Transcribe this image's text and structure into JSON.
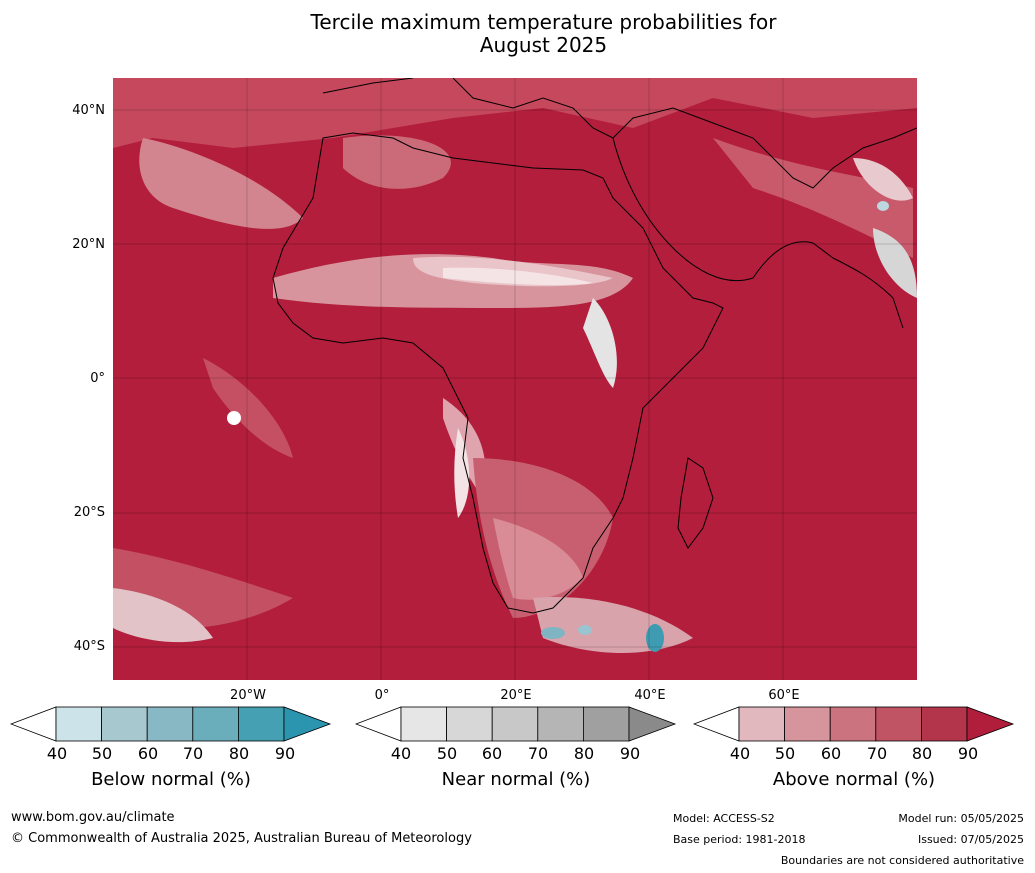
{
  "title_line1": "Tercile maximum temperature probabilities for",
  "title_line2": "August 2025",
  "map": {
    "lat_labels": [
      "40°N",
      "20°N",
      "0°",
      "20°S",
      "40°S"
    ],
    "lon_labels": [
      "20°W",
      "0°",
      "20°E",
      "40°E",
      "60°E"
    ]
  },
  "colorbars": [
    {
      "label": "Below normal (%)",
      "ticks": [
        "40",
        "50",
        "60",
        "70",
        "80",
        "90"
      ],
      "colors": [
        "#ffffff",
        "#cce3ea",
        "#a8c8d0",
        "#88b8c4",
        "#6aaebb",
        "#45a0b4",
        "#2b95b0"
      ]
    },
    {
      "label": "Near normal (%)",
      "ticks": [
        "40",
        "50",
        "60",
        "70",
        "80",
        "90"
      ],
      "colors": [
        "#ffffff",
        "#e6e6e6",
        "#d7d7d7",
        "#c8c8c8",
        "#b5b5b5",
        "#a0a0a0",
        "#8a8a8a"
      ]
    },
    {
      "label": "Above normal (%)",
      "ticks": [
        "40",
        "50",
        "60",
        "70",
        "80",
        "90"
      ],
      "colors": [
        "#ffffff",
        "#e0b8bd",
        "#d6949c",
        "#cb737e",
        "#c05465",
        "#b3354b",
        "#b01e3c"
      ]
    }
  ],
  "footer": {
    "website": "www.bom.gov.au/climate",
    "copyright": "© Commonwealth of Australia 2025, Australian Bureau of Meteorology",
    "model": "Model: ACCESS-S2",
    "base_period": "Base period: 1981-2018",
    "model_run": "Model run: 05/05/2025",
    "issued": "Issued: 07/05/2025",
    "boundaries": "Boundaries are not considered authoritative"
  }
}
